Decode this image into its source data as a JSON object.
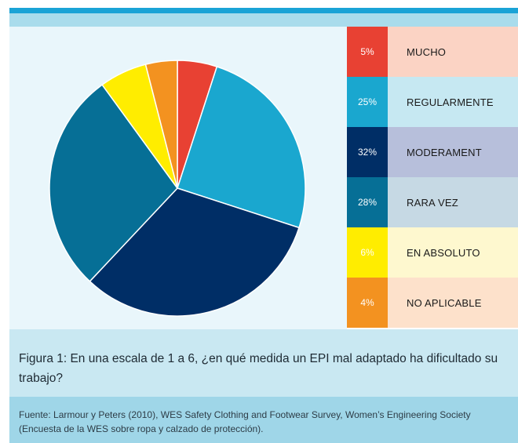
{
  "chart_data": {
    "type": "pie",
    "categories": [
      "MUCHO",
      "REGULARMENTE",
      "MODERAMENT",
      "RARA VEZ",
      "EN ABSOLUTO",
      "NO APLICABLE"
    ],
    "values": [
      5,
      25,
      32,
      28,
      6,
      4
    ],
    "labels": [
      "5%",
      "25%",
      "32%",
      "28%",
      "6%",
      "4%"
    ],
    "colors": [
      "#e84133",
      "#1aa7cf",
      "#002e66",
      "#066f96",
      "#ffed00",
      "#f39220"
    ],
    "label_backgrounds": [
      "#fbd3c4",
      "#c6e8f2",
      "#b7bfdb",
      "#c6d9e4",
      "#fef8cf",
      "#fde1cb"
    ],
    "legend_position": "right"
  },
  "caption": "Figura 1: En una escala de 1 a 6, ¿en qué medida un EPI mal adaptado ha dificultado su trabajo?",
  "source": "Fuente: Larmour y Peters (2010), WES Safety Clothing and Footwear Survey, Women’s Engineering Society (Encuesta de la WES sobre ropa y calzado de protección)."
}
